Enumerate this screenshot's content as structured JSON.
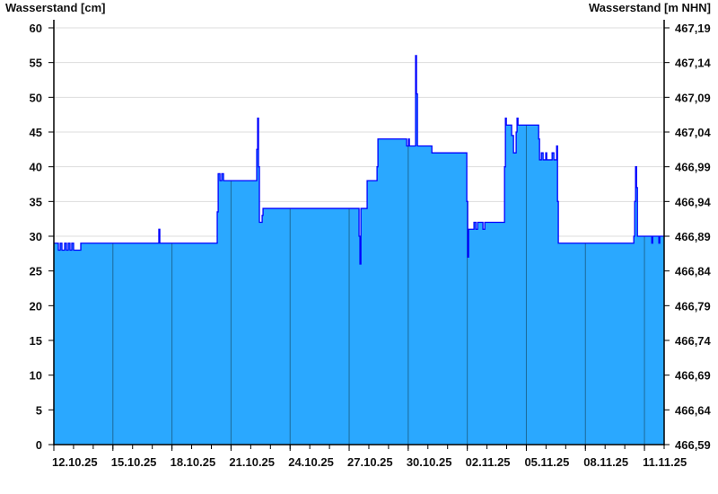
{
  "chart_data": {
    "type": "area",
    "step": true,
    "ylabel_left": "Wasserstand [cm]",
    "ylabel_right": "Wasserstand [m NHN]",
    "ylim": [
      0,
      60
    ],
    "ylim_right": [
      466.59,
      467.19
    ],
    "yticks": [
      0,
      5,
      10,
      15,
      20,
      25,
      30,
      35,
      40,
      45,
      50,
      55,
      60
    ],
    "yticks_right": [
      "466,59",
      "466,64",
      "466,69",
      "466,74",
      "466,79",
      "466,84",
      "466,89",
      "466,94",
      "466,99",
      "467,04",
      "467,09",
      "467,14",
      "467,19"
    ],
    "xlim": [
      "2025-10-12T00:00",
      "2025-11-12T00:00"
    ],
    "xticks": [
      "2025-10-12",
      "2025-10-15",
      "2025-10-18",
      "2025-10-21",
      "2025-10-24",
      "2025-10-27",
      "2025-10-30",
      "2025-11-02",
      "2025-11-05",
      "2025-11-08",
      "2025-11-11"
    ],
    "xtick_labels": [
      "12.10.25",
      "15.10.25",
      "18.10.25",
      "21.10.25",
      "24.10.25",
      "27.10.25",
      "30.10.25",
      "02.11.25",
      "05.11.25",
      "08.11.25",
      "11.11.25"
    ],
    "grid": "horizontal",
    "colors": {
      "fill": "#2aa8ff",
      "line": "#0000ff",
      "grid": "#dddddd",
      "vgrid": "#1c6a99"
    },
    "points": [
      [
        "2025-10-12T00:00",
        29
      ],
      [
        "2025-10-12T05:30",
        28
      ],
      [
        "2025-10-12T07:45",
        29
      ],
      [
        "2025-10-12T09:50",
        28
      ],
      [
        "2025-10-12T13:10",
        29
      ],
      [
        "2025-10-12T15:20",
        28
      ],
      [
        "2025-10-12T17:30",
        29
      ],
      [
        "2025-10-12T19:40",
        28
      ],
      [
        "2025-10-12T21:50",
        29
      ],
      [
        "2025-10-13T00:05",
        28
      ],
      [
        "2025-10-13T08:50",
        29
      ],
      [
        "2025-10-17T08:00",
        31
      ],
      [
        "2025-10-17T09:10",
        29
      ],
      [
        "2025-10-20T07:10",
        33.5
      ],
      [
        "2025-10-20T08:20",
        39
      ],
      [
        "2025-10-20T10:30",
        38
      ],
      [
        "2025-10-20T12:40",
        39
      ],
      [
        "2025-10-20T14:50",
        38
      ],
      [
        "2025-10-22T07:20",
        42.5
      ],
      [
        "2025-10-22T08:25",
        47
      ],
      [
        "2025-10-22T09:30",
        40
      ],
      [
        "2025-10-22T10:35",
        32
      ],
      [
        "2025-10-22T13:55",
        33
      ],
      [
        "2025-10-22T15:00",
        34
      ],
      [
        "2025-10-27T12:05",
        30
      ],
      [
        "2025-10-27T13:10",
        26
      ],
      [
        "2025-10-27T14:20",
        34
      ],
      [
        "2025-10-27T21:55",
        38
      ],
      [
        "2025-10-28T10:00",
        40
      ],
      [
        "2025-10-28T11:05",
        44
      ],
      [
        "2025-10-29T22:05",
        43
      ],
      [
        "2025-10-30T00:20",
        44
      ],
      [
        "2025-10-30T01:25",
        43
      ],
      [
        "2025-10-30T09:00",
        56
      ],
      [
        "2025-10-30T10:05",
        50.5
      ],
      [
        "2025-10-30T11:15",
        43
      ],
      [
        "2025-10-31T04:50",
        42
      ],
      [
        "2025-11-01T23:25",
        35
      ],
      [
        "2025-11-02T00:30",
        27
      ],
      [
        "2025-11-02T01:35",
        31
      ],
      [
        "2025-11-02T08:10",
        32
      ],
      [
        "2025-11-02T10:25",
        31
      ],
      [
        "2025-11-02T12:35",
        32
      ],
      [
        "2025-11-02T19:05",
        31
      ],
      [
        "2025-11-02T21:20",
        32
      ],
      [
        "2025-11-03T21:25",
        40
      ],
      [
        "2025-11-03T22:30",
        47
      ],
      [
        "2025-11-03T23:35",
        46
      ],
      [
        "2025-11-04T06:05",
        44.5
      ],
      [
        "2025-11-04T08:20",
        42
      ],
      [
        "2025-11-04T11:35",
        45
      ],
      [
        "2025-11-04T12:40",
        47
      ],
      [
        "2025-11-04T13:50",
        46
      ],
      [
        "2025-11-05T15:00",
        44
      ],
      [
        "2025-11-05T16:05",
        41
      ],
      [
        "2025-11-05T18:20",
        42
      ],
      [
        "2025-11-05T20:25",
        41
      ],
      [
        "2025-11-05T23:40",
        42
      ],
      [
        "2025-11-06T00:50",
        41
      ],
      [
        "2025-11-06T07:25",
        42
      ],
      [
        "2025-11-06T09:35",
        41
      ],
      [
        "2025-11-06T12:55",
        43
      ],
      [
        "2025-11-06T14:00",
        35
      ],
      [
        "2025-11-06T15:00",
        29
      ],
      [
        "2025-11-10T11:00",
        30
      ],
      [
        "2025-11-10T12:05",
        35
      ],
      [
        "2025-11-10T13:10",
        40
      ],
      [
        "2025-11-10T14:20",
        37
      ],
      [
        "2025-11-10T15:25",
        30
      ],
      [
        "2025-11-11T08:55",
        29
      ],
      [
        "2025-11-11T10:00",
        30
      ],
      [
        "2025-11-11T17:35",
        29
      ],
      [
        "2025-11-11T18:40",
        30
      ]
    ]
  }
}
